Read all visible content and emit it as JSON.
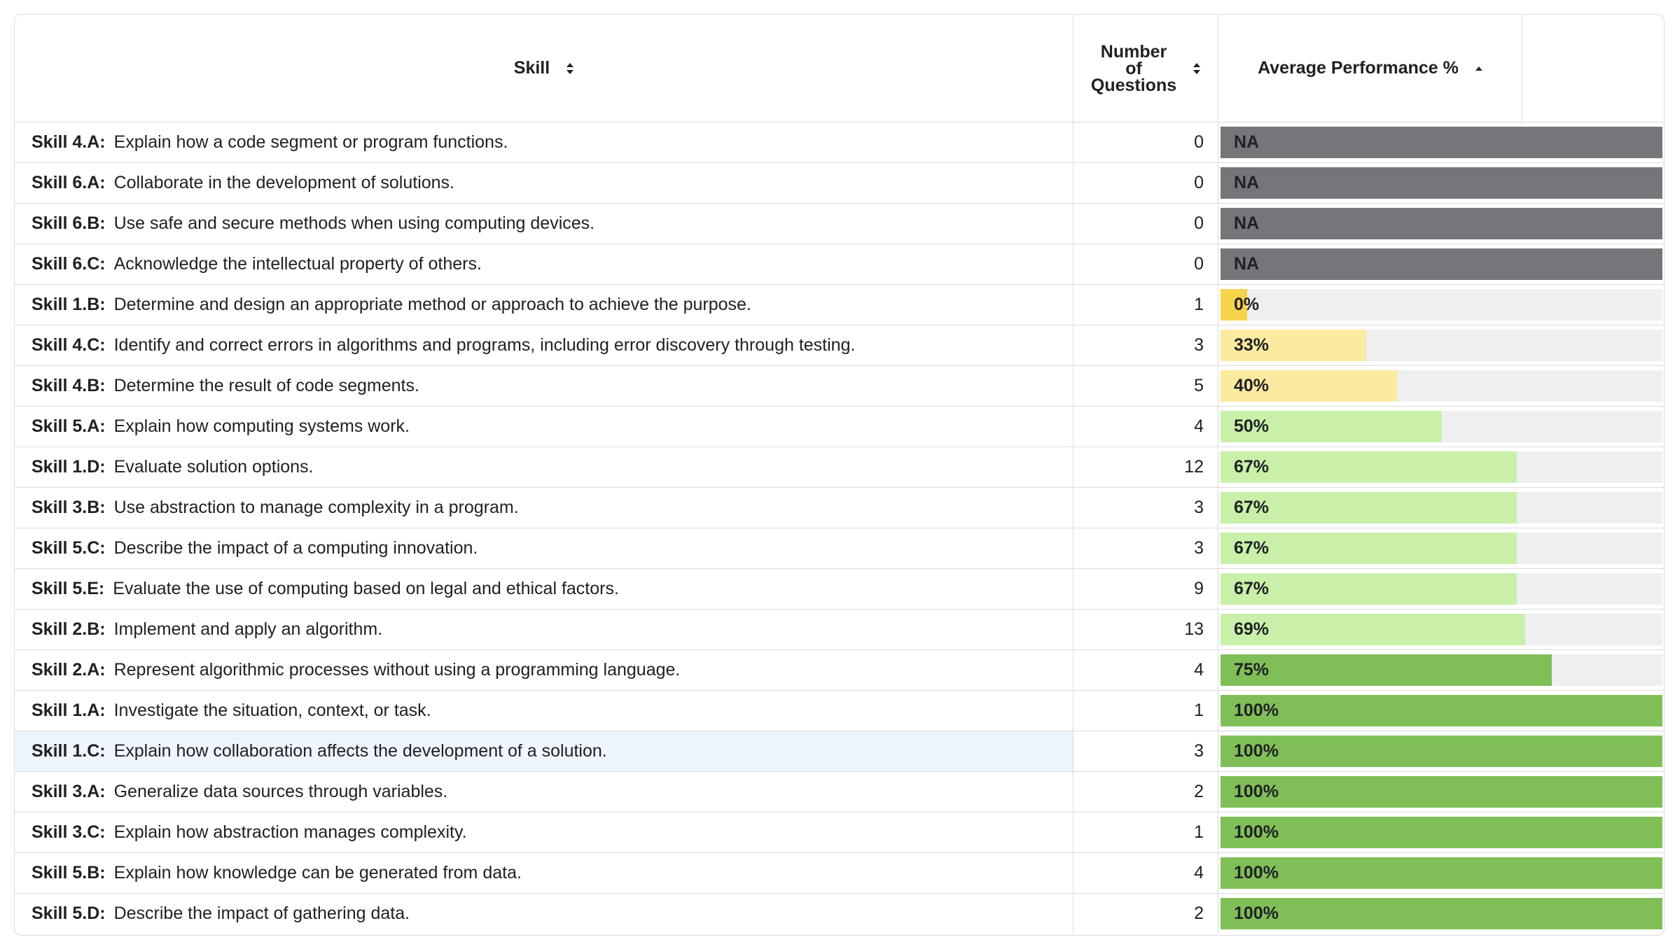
{
  "header": {
    "skill_label": "Skill",
    "num_line1": "Number",
    "num_line2": "of",
    "num_line3": "Questions",
    "perf_label": "Average Performance %"
  },
  "colors": {
    "na": "#75757a",
    "red_yellow": "#f5d44a",
    "light_yellow": "#fbeaa0",
    "light_green": "#c8f0a9",
    "green": "#80bf58",
    "track": "#efefef",
    "highlight": "#eef5fd"
  },
  "rows": [
    {
      "code": "Skill 4.A:",
      "desc": "Explain how a code segment or program functions.",
      "num": "0",
      "perf": "NA",
      "value": null,
      "band": "na"
    },
    {
      "code": "Skill 6.A:",
      "desc": "Collaborate in the development of solutions.",
      "num": "0",
      "perf": "NA",
      "value": null,
      "band": "na"
    },
    {
      "code": "Skill 6.B:",
      "desc": "Use safe and secure methods when using computing devices.",
      "num": "0",
      "perf": "NA",
      "value": null,
      "band": "na"
    },
    {
      "code": "Skill 6.C:",
      "desc": "Acknowledge the intellectual property of others.",
      "num": "0",
      "perf": "NA",
      "value": null,
      "band": "na"
    },
    {
      "code": "Skill 1.B:",
      "desc": "Determine and design an appropriate method or approach to achieve the purpose.",
      "num": "1",
      "perf": "0%",
      "value": 0,
      "band": "red_yellow"
    },
    {
      "code": "Skill 4.C:",
      "desc": "Identify and correct errors in algorithms and programs, including error discovery through testing.",
      "num": "3",
      "perf": "33%",
      "value": 33,
      "band": "light_yellow"
    },
    {
      "code": "Skill 4.B:",
      "desc": "Determine the result of code segments.",
      "num": "5",
      "perf": "40%",
      "value": 40,
      "band": "light_yellow"
    },
    {
      "code": "Skill 5.A:",
      "desc": "Explain how computing systems work.",
      "num": "4",
      "perf": "50%",
      "value": 50,
      "band": "light_green"
    },
    {
      "code": "Skill 1.D:",
      "desc": "Evaluate solution options.",
      "num": "12",
      "perf": "67%",
      "value": 67,
      "band": "light_green"
    },
    {
      "code": "Skill 3.B:",
      "desc": "Use abstraction to manage complexity in a program.",
      "num": "3",
      "perf": "67%",
      "value": 67,
      "band": "light_green"
    },
    {
      "code": "Skill 5.C:",
      "desc": "Describe the impact of a computing innovation.",
      "num": "3",
      "perf": "67%",
      "value": 67,
      "band": "light_green"
    },
    {
      "code": "Skill 5.E:",
      "desc": "Evaluate the use of computing based on legal and ethical factors.",
      "num": "9",
      "perf": "67%",
      "value": 67,
      "band": "light_green"
    },
    {
      "code": "Skill 2.B:",
      "desc": "Implement and apply an algorithm.",
      "num": "13",
      "perf": "69%",
      "value": 69,
      "band": "light_green"
    },
    {
      "code": "Skill 2.A:",
      "desc": "Represent algorithmic processes without using a programming language.",
      "num": "4",
      "perf": "75%",
      "value": 75,
      "band": "green"
    },
    {
      "code": "Skill 1.A:",
      "desc": "Investigate the situation, context, or task.",
      "num": "1",
      "perf": "100%",
      "value": 100,
      "band": "green"
    },
    {
      "code": "Skill 1.C:",
      "desc": "Explain how collaboration affects the development of a solution.",
      "num": "3",
      "perf": "100%",
      "value": 100,
      "band": "green",
      "highlight": true
    },
    {
      "code": "Skill 3.A:",
      "desc": "Generalize data sources through variables.",
      "num": "2",
      "perf": "100%",
      "value": 100,
      "band": "green"
    },
    {
      "code": "Skill 3.C:",
      "desc": "Explain how abstraction manages complexity.",
      "num": "1",
      "perf": "100%",
      "value": 100,
      "band": "green"
    },
    {
      "code": "Skill 5.B:",
      "desc": "Explain how knowledge can be generated from data.",
      "num": "4",
      "perf": "100%",
      "value": 100,
      "band": "green"
    },
    {
      "code": "Skill 5.D:",
      "desc": "Describe the impact of gathering data.",
      "num": "2",
      "perf": "100%",
      "value": 100,
      "band": "green"
    }
  ]
}
